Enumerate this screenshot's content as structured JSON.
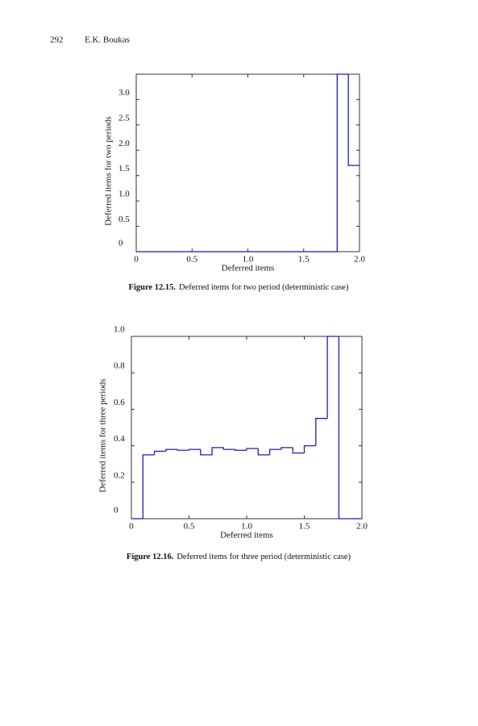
{
  "header": {
    "page": "292",
    "author": "E.K. Boukas"
  },
  "chart_data": [
    {
      "type": "histogram",
      "xlabel": "Deferred items",
      "ylabel": "Deferred items for two periods",
      "bins": [
        0,
        0.1,
        0.2,
        0.3,
        0.4,
        0.5,
        0.6,
        0.7,
        0.8,
        0.9,
        1.0,
        1.1,
        1.2,
        1.3,
        1.4,
        1.5,
        1.6,
        1.7,
        1.8,
        1.9,
        2.0
      ],
      "counts": [
        0,
        0,
        0,
        0,
        0,
        0,
        0,
        0,
        0,
        0,
        0,
        0,
        0,
        0,
        0,
        0,
        0,
        0,
        3.5,
        1.7
      ],
      "color": "#1f1fb4",
      "xlim": [
        0,
        2
      ],
      "ylim": [
        0,
        3.5
      ],
      "xticks": [
        0,
        0.5,
        {
          "value": 1,
          "label": "1.0"
        },
        1.5,
        {
          "value": 2,
          "label": "2.0"
        }
      ],
      "yticks": [
        0,
        0.5,
        {
          "value": 1,
          "label": "1.0"
        },
        1.5,
        {
          "value": 2,
          "label": "2.0"
        },
        2.5,
        {
          "value": 3,
          "label": "3.0"
        }
      ],
      "caption_label": "Figure 12.15.",
      "caption": "Deferred items for two period (deterministic case)"
    },
    {
      "type": "histogram",
      "xlabel": "Deferred items",
      "ylabel": "Deferred items for three periods",
      "bins": [
        0,
        0.1,
        0.2,
        0.3,
        0.4,
        0.5,
        0.6,
        0.7,
        0.8,
        0.9,
        1.0,
        1.1,
        1.2,
        1.3,
        1.4,
        1.5,
        1.6,
        1.7,
        1.8,
        1.9,
        2.0
      ],
      "counts": [
        0,
        0.35,
        0.37,
        0.38,
        0.375,
        0.38,
        0.35,
        0.39,
        0.38,
        0.375,
        0.385,
        0.35,
        0.38,
        0.39,
        0.36,
        0.4,
        0.55,
        1.0,
        0,
        0
      ],
      "color": "#1f1fb4",
      "xlim": [
        0,
        2
      ],
      "ylim": [
        0,
        1
      ],
      "xticks": [
        0,
        0.5,
        {
          "value": 1,
          "label": "1.0"
        },
        1.5,
        {
          "value": 2,
          "label": "2.0"
        }
      ],
      "yticks": [
        0,
        0.2,
        0.4,
        0.6,
        0.8,
        {
          "value": 1,
          "label": "1.0"
        }
      ],
      "caption_label": "Figure 12.16.",
      "caption": "Deferred items for three period (deterministic case)"
    }
  ]
}
